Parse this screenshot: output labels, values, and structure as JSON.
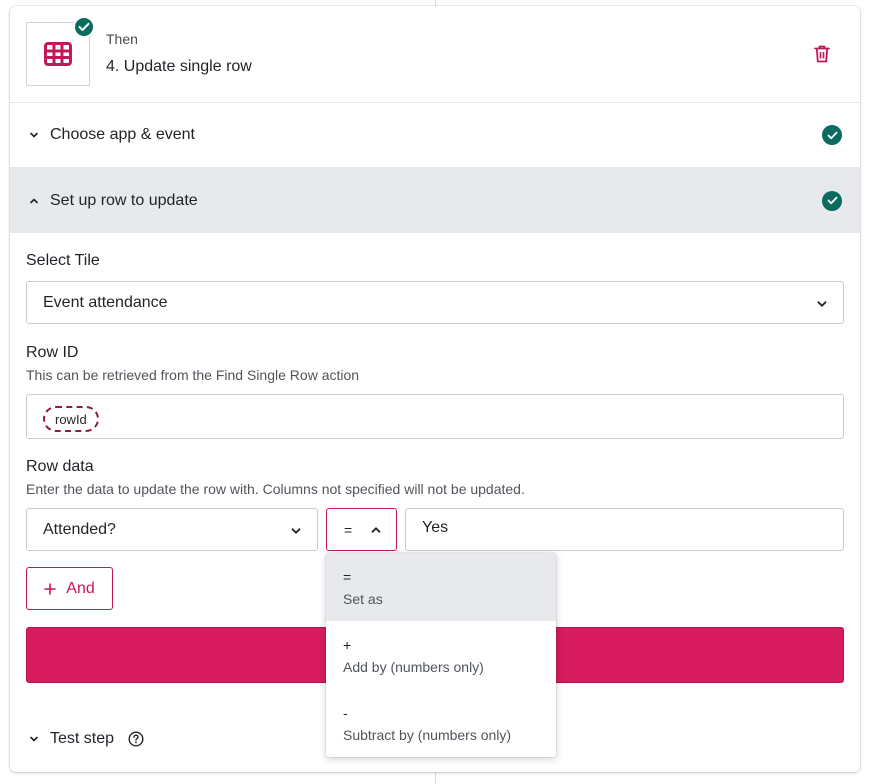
{
  "header": {
    "then_label": "Then",
    "step_title": "4. Update single row",
    "app_icon": "table-grid-icon",
    "delete_icon": "trash-icon"
  },
  "sections": {
    "choose_app": "Choose app & event",
    "setup_row": "Set up row to update"
  },
  "form": {
    "select_tile_label": "Select Tile",
    "select_tile_value": "Event attendance",
    "row_id_label": "Row ID",
    "row_id_hint": "This can be retrieved from the Find Single Row action",
    "row_id_token": "rowId",
    "row_data_label": "Row data",
    "row_data_hint": "Enter the data to update the row with. Columns not specified will not be updated.",
    "column_value": "Attended?",
    "operator_value": "=",
    "data_value": "Yes",
    "and_button": "And"
  },
  "operator_menu": [
    {
      "symbol": "=",
      "description": "Set as"
    },
    {
      "symbol": "+",
      "description": "Add by (numbers only)"
    },
    {
      "symbol": "-",
      "description": "Subtract by (numbers only)"
    }
  ],
  "test_step": {
    "label": "Test step"
  },
  "colors": {
    "accent": "#d81b5f",
    "success": "#0b6b5e",
    "selected_bg": "#e8e9ec"
  }
}
